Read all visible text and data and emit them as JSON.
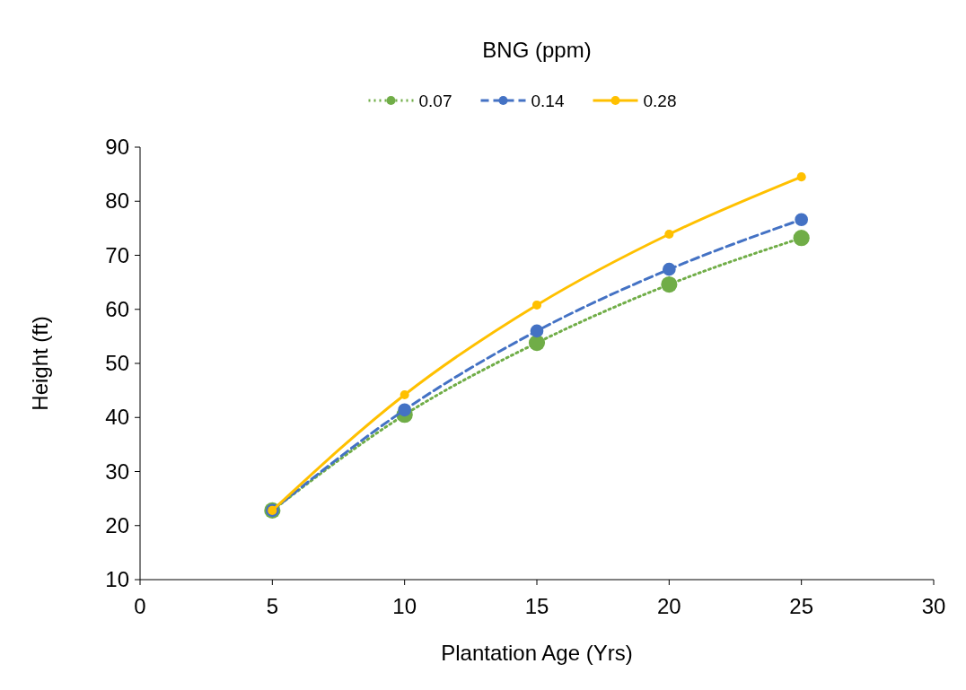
{
  "chart_data": {
    "type": "line",
    "legend_title": "BNG (ppm)",
    "xlabel": "Plantation Age (Yrs)",
    "ylabel": "Height (ft)",
    "x": [
      5,
      10,
      15,
      20,
      25
    ],
    "series": [
      {
        "name": "0.07",
        "color": "#70ad47",
        "line_style": "dotted",
        "values": [
          22.8,
          40.5,
          53.8,
          64.6,
          73.2
        ]
      },
      {
        "name": "0.14",
        "color": "#4472c4",
        "line_style": "dashed",
        "values": [
          22.8,
          41.4,
          56,
          67.4,
          76.6
        ]
      },
      {
        "name": "0.28",
        "color": "#ffc000",
        "line_style": "solid",
        "values": [
          22.8,
          44.2,
          60.8,
          73.9,
          84.5
        ]
      }
    ],
    "xlim": [
      0,
      30
    ],
    "xticks": [
      0,
      5,
      10,
      15,
      20,
      25,
      30
    ],
    "ylim": [
      10,
      90
    ],
    "yticks": [
      10,
      20,
      30,
      40,
      50,
      60,
      70,
      80,
      90
    ],
    "grid": false,
    "legend": "top",
    "marker": "circle"
  }
}
